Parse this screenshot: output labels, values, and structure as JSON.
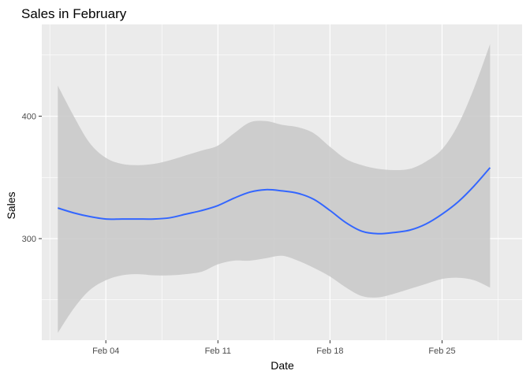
{
  "chart_data": {
    "type": "line",
    "title": "Sales in February",
    "xlabel": "Date",
    "ylabel": "Sales",
    "x_ticks": [
      {
        "label": "Feb 04",
        "date": "2019-02-04"
      },
      {
        "label": "Feb 11",
        "date": "2019-02-11"
      },
      {
        "label": "Feb 18",
        "date": "2019-02-18"
      },
      {
        "label": "Feb 25",
        "date": "2019-02-25"
      }
    ],
    "y_ticks": [
      300,
      400
    ],
    "xlim": [
      "2019-01-31",
      "2019-03-02"
    ],
    "ylim": [
      217,
      475
    ],
    "grid": true,
    "colors": {
      "line": "#3366FF",
      "ribbon": "#c8c8c8",
      "panel": "#EBEBEB",
      "grid": "#ffffff"
    },
    "series": [
      {
        "type": "smooth",
        "points": [
          {
            "date": "2019-02-01",
            "y": 325,
            "lower": 223,
            "upper": 425
          },
          {
            "date": "2019-02-02",
            "y": 321,
            "lower": 243,
            "upper": 400
          },
          {
            "date": "2019-02-03",
            "y": 318,
            "lower": 258,
            "upper": 378
          },
          {
            "date": "2019-02-04",
            "y": 316,
            "lower": 266,
            "upper": 366
          },
          {
            "date": "2019-02-05",
            "y": 316,
            "lower": 270,
            "upper": 361
          },
          {
            "date": "2019-02-06",
            "y": 316,
            "lower": 271,
            "upper": 360
          },
          {
            "date": "2019-02-07",
            "y": 316,
            "lower": 270,
            "upper": 361
          },
          {
            "date": "2019-02-08",
            "y": 317,
            "lower": 270,
            "upper": 364
          },
          {
            "date": "2019-02-09",
            "y": 320,
            "lower": 271,
            "upper": 368
          },
          {
            "date": "2019-02-10",
            "y": 323,
            "lower": 273,
            "upper": 372
          },
          {
            "date": "2019-02-11",
            "y": 327,
            "lower": 279,
            "upper": 376
          },
          {
            "date": "2019-02-12",
            "y": 333,
            "lower": 282,
            "upper": 386
          },
          {
            "date": "2019-02-13",
            "y": 338,
            "lower": 282,
            "upper": 395
          },
          {
            "date": "2019-02-14",
            "y": 340,
            "lower": 284,
            "upper": 396
          },
          {
            "date": "2019-02-15",
            "y": 339,
            "lower": 286,
            "upper": 393
          },
          {
            "date": "2019-02-16",
            "y": 337,
            "lower": 282,
            "upper": 391
          },
          {
            "date": "2019-02-17",
            "y": 332,
            "lower": 276,
            "upper": 386
          },
          {
            "date": "2019-02-18",
            "y": 323,
            "lower": 269,
            "upper": 375
          },
          {
            "date": "2019-02-19",
            "y": 313,
            "lower": 260,
            "upper": 365
          },
          {
            "date": "2019-02-20",
            "y": 306,
            "lower": 253,
            "upper": 360
          },
          {
            "date": "2019-02-21",
            "y": 304,
            "lower": 252,
            "upper": 357
          },
          {
            "date": "2019-02-22",
            "y": 305,
            "lower": 255,
            "upper": 356
          },
          {
            "date": "2019-02-23",
            "y": 307,
            "lower": 259,
            "upper": 357
          },
          {
            "date": "2019-02-24",
            "y": 312,
            "lower": 263,
            "upper": 363
          },
          {
            "date": "2019-02-25",
            "y": 320,
            "lower": 267,
            "upper": 373
          },
          {
            "date": "2019-02-26",
            "y": 330,
            "lower": 268,
            "upper": 393
          },
          {
            "date": "2019-02-27",
            "y": 343,
            "lower": 266,
            "upper": 423
          },
          {
            "date": "2019-02-28",
            "y": 358,
            "lower": 260,
            "upper": 459
          }
        ]
      }
    ]
  }
}
